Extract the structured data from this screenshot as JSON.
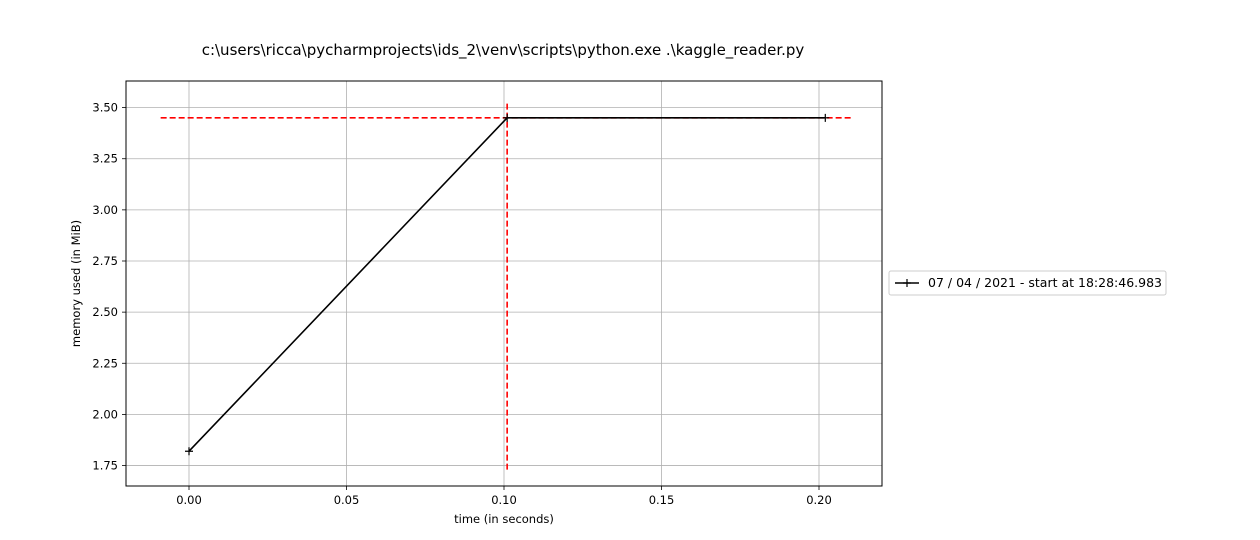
{
  "chart_data": {
    "type": "line",
    "title": "c:\\users\\ricca\\pycharmprojects\\ids_2\\venv\\scripts\\python.exe .\\kaggle_reader.py",
    "xlabel": "time (in seconds)",
    "ylabel": "memory used (in MiB)",
    "xlim": [
      -0.02,
      0.22
    ],
    "ylim": [
      1.65,
      3.63
    ],
    "x_ticks": [
      0.0,
      0.05,
      0.1,
      0.15,
      0.2
    ],
    "x_tick_labels": [
      "0.00",
      "0.05",
      "0.10",
      "0.15",
      "0.20"
    ],
    "y_ticks": [
      1.75,
      2.0,
      2.25,
      2.5,
      2.75,
      3.0,
      3.25,
      3.5
    ],
    "y_tick_labels": [
      "1.75",
      "2.00",
      "2.25",
      "2.50",
      "2.75",
      "3.00",
      "3.25",
      "3.50"
    ],
    "grid": true,
    "legend_position": "outside right, center",
    "series": [
      {
        "name": "07 / 04 / 2021 - start at 18:28:46.983",
        "color": "#000000",
        "marker": "+",
        "x": [
          0.0,
          0.101,
          0.202
        ],
        "y": [
          1.82,
          3.45,
          3.45
        ]
      }
    ],
    "reference_lines": [
      {
        "orientation": "horizontal",
        "value": 3.45,
        "from": -0.009,
        "to": 0.211,
        "color": "#ff0000",
        "style": "dashed"
      },
      {
        "orientation": "vertical",
        "value": 0.101,
        "from": 1.73,
        "to": 3.53,
        "color": "#ff0000",
        "style": "dashed"
      }
    ]
  }
}
